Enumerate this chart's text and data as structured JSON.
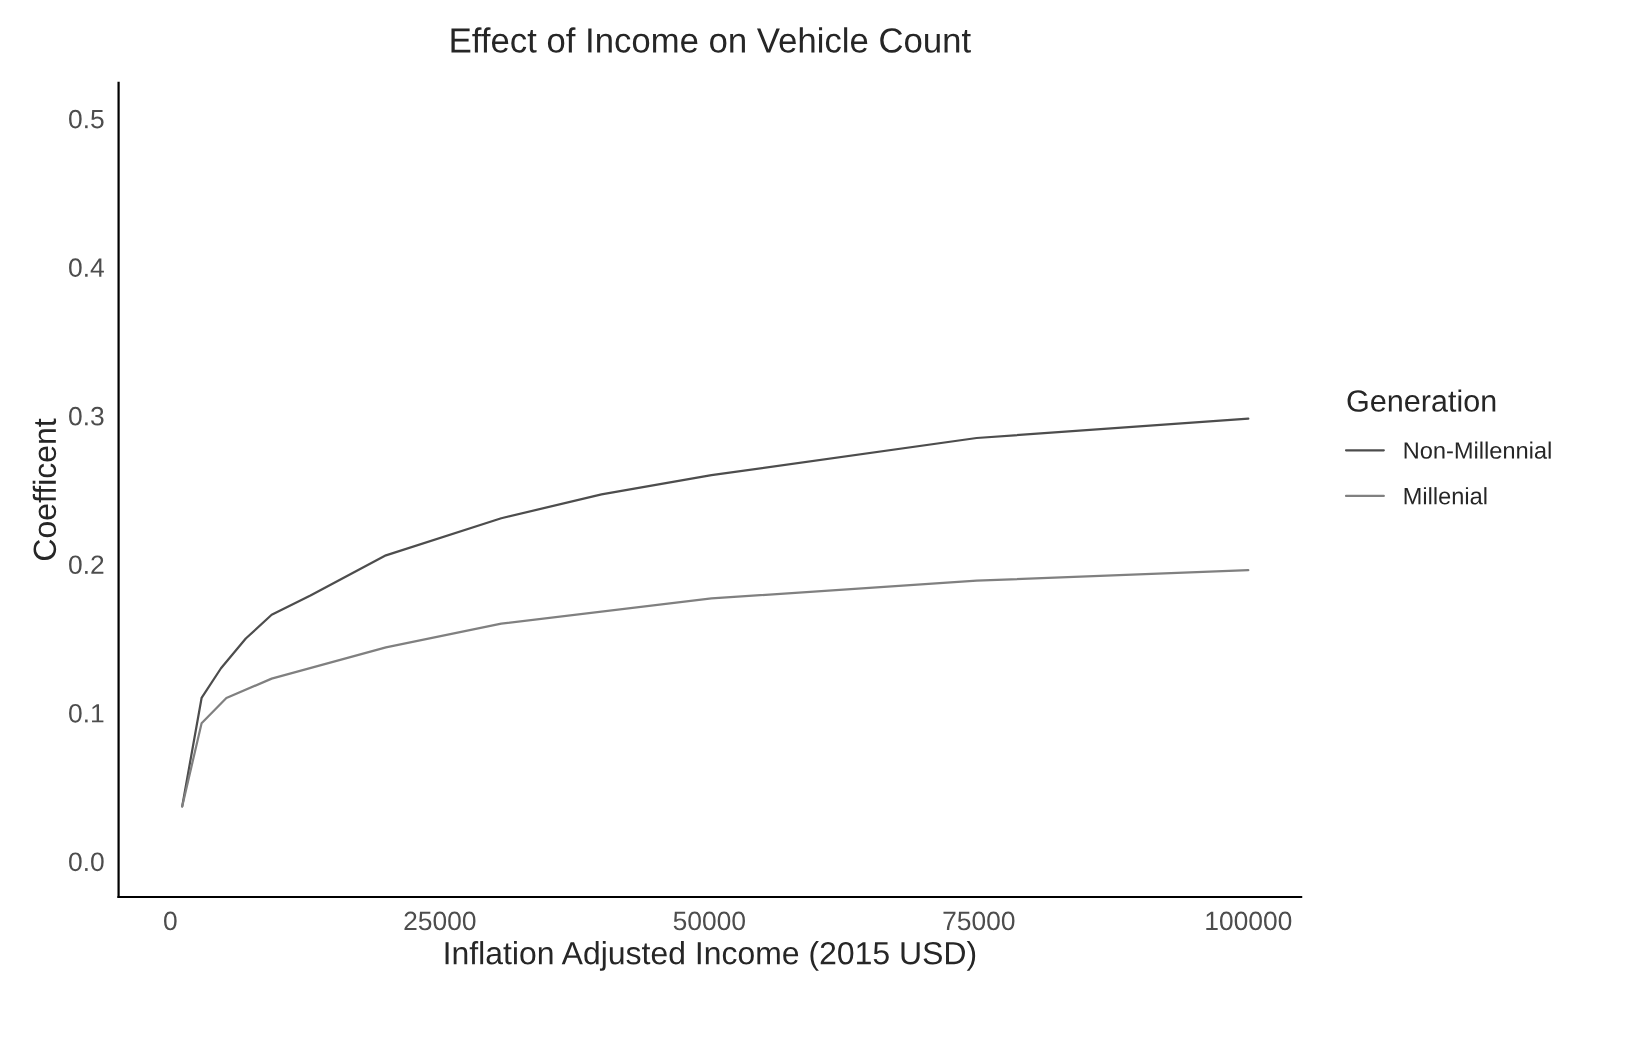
{
  "chart_data": {
    "type": "line",
    "title": "Effect of Income on Vehicle Count",
    "xlabel": "Inflation Adjusted Income (2015 USD)",
    "ylabel": "Coefficent",
    "legend_title": "Generation",
    "legend": "right",
    "series": [
      {
        "name": "Non-Millennial",
        "color": "#4d4d4d",
        "x": [
          1100,
          2900,
          4700,
          7000,
          9400,
          13000,
          20000,
          30700,
          40000,
          50200,
          74800,
          100000
        ],
        "values": [
          0.037,
          0.11,
          0.13,
          0.15,
          0.166,
          0.179,
          0.206,
          0.231,
          0.247,
          0.26,
          0.285,
          0.298
        ]
      },
      {
        "name": "Millenial",
        "color": "#808080",
        "x": [
          1100,
          2900,
          5200,
          9400,
          20000,
          30700,
          50200,
          74800,
          100000
        ],
        "values": [
          0.037,
          0.093,
          0.11,
          0.123,
          0.144,
          0.16,
          0.177,
          0.189,
          0.196
        ]
      }
    ],
    "xlim": [
      -4800,
      104900
    ],
    "ylim": [
      -0.024,
      0.524
    ],
    "xticks": [
      0,
      25000,
      50000,
      75000,
      100000
    ],
    "yticks": [
      {
        "value": 0,
        "label": "0.0"
      },
      0.1,
      0.2,
      0.3,
      0.4,
      0.5
    ],
    "grid": false,
    "marker": "none",
    "line_style": "solid"
  }
}
